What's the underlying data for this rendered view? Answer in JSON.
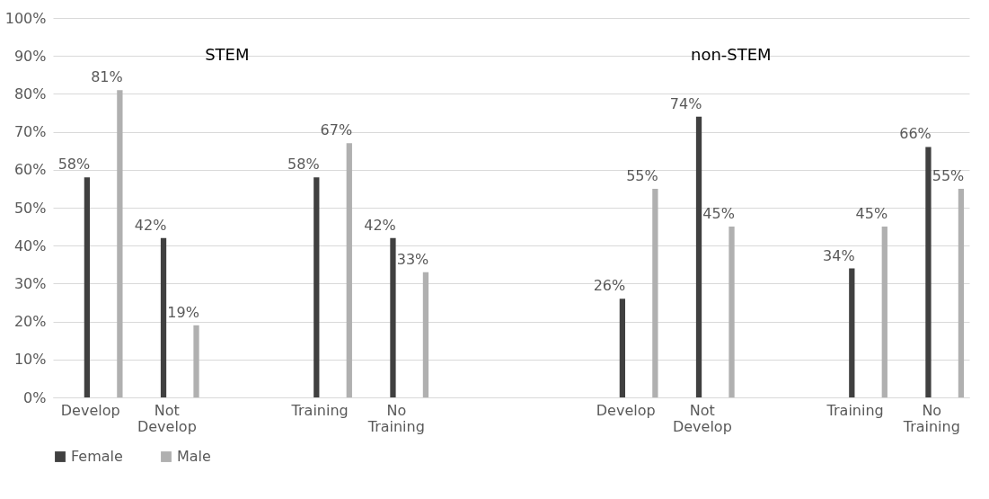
{
  "chart_data": {
    "type": "bar",
    "categories": [
      "Develop",
      "Not Develop",
      null,
      "Training",
      "No Training",
      null,
      null,
      "Develop",
      "Not Develop",
      null,
      "Training",
      "No Training"
    ],
    "series": [
      {
        "name": "Female",
        "color": "#404040",
        "values": [
          58,
          42,
          null,
          58,
          42,
          null,
          null,
          26,
          74,
          null,
          34,
          66
        ],
        "value_labels": [
          "58%",
          "42%",
          null,
          "58%",
          "42%",
          null,
          null,
          "26%",
          "74%",
          null,
          "34%",
          "66%"
        ]
      },
      {
        "name": "Male",
        "color": "#b0b0b0",
        "values": [
          81,
          19,
          null,
          67,
          33,
          null,
          null,
          55,
          45,
          null,
          45,
          55
        ],
        "value_labels": [
          "81%",
          "19%",
          null,
          "67%",
          "33%",
          null,
          null,
          "55%",
          "45%",
          null,
          "45%",
          "55%"
        ]
      }
    ],
    "annotations": [
      "STEM",
      "non-STEM"
    ],
    "ylim": [
      0,
      100
    ],
    "yticks": [
      {
        "value": 0,
        "label": "0%"
      },
      {
        "value": 10,
        "label": "10%"
      },
      {
        "value": 20,
        "label": "20%"
      },
      {
        "value": 30,
        "label": "30%"
      },
      {
        "value": 40,
        "label": "40%"
      },
      {
        "value": 50,
        "label": "50%"
      },
      {
        "value": 60,
        "label": "60%"
      },
      {
        "value": 70,
        "label": "70%"
      },
      {
        "value": 80,
        "label": "80%"
      },
      {
        "value": 90,
        "label": "90%"
      },
      {
        "value": 100,
        "label": "100%"
      }
    ],
    "grid": "y",
    "legend": "bottom"
  }
}
